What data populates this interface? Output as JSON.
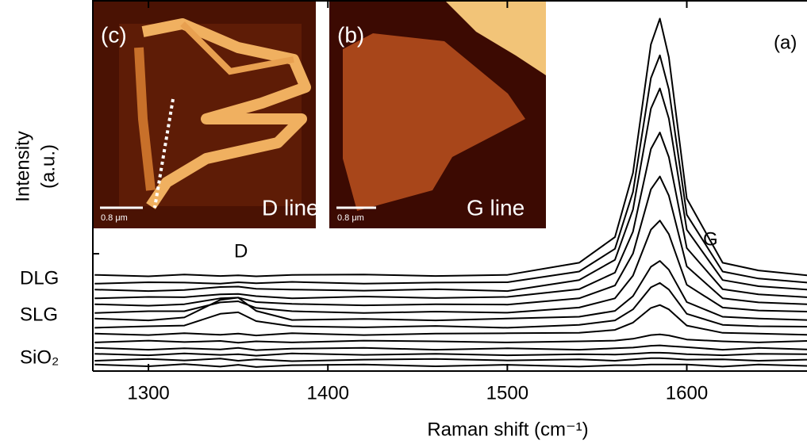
{
  "chart_data": {
    "type": "waterfall",
    "xlabel": "Raman shift (cm⁻¹)",
    "ylabel_lines": [
      "Intensity",
      "(a.u.)"
    ],
    "panel_label": "(a)",
    "annotations": {
      "DLG": "DLG",
      "SLG": "SLG",
      "SiO2": "SiO₂",
      "D": "D",
      "G": "G"
    },
    "insets": [
      {
        "panel": "(c)",
        "label": "D line",
        "scale_bar": "0.8 μm"
      },
      {
        "panel": "(b)",
        "label": "G line",
        "scale_bar": "0.8 μm"
      }
    ],
    "xlim": [
      1269,
      1667
    ],
    "xticks": [
      1300,
      1400,
      1500,
      1600
    ],
    "ylim": [
      0,
      100
    ],
    "color": "#000000",
    "x": [
      1270,
      1300,
      1320,
      1340,
      1350,
      1360,
      1380,
      1420,
      1460,
      1500,
      1540,
      1560,
      1570,
      1580,
      1585,
      1590,
      1600,
      1620,
      1640,
      1667
    ],
    "series": [
      {
        "values": [
          1.8,
          1.3,
          1.9,
          1.2,
          1.7,
          1.1,
          1.6,
          1.8,
          1.3,
          1.7,
          1.2,
          1.6,
          1.6,
          1.8,
          1.8,
          1.8,
          1.8,
          1.2,
          1.8,
          1.4
        ]
      },
      {
        "values": [
          2.8,
          3.3,
          2.9,
          3.4,
          2.8,
          3.2,
          2.7,
          3.1,
          3.3,
          2.9,
          3.2,
          2.8,
          3.2,
          3.5,
          3.5,
          3.4,
          3.1,
          3.2,
          2.8,
          3.1
        ]
      },
      {
        "values": [
          4.7,
          4.3,
          4.8,
          4.4,
          4.6,
          4.2,
          4.8,
          4.4,
          4.7,
          4.3,
          4.6,
          4.5,
          4.7,
          5.0,
          5.0,
          4.9,
          4.6,
          4.3,
          4.7,
          4.6
        ]
      },
      {
        "values": [
          6.3,
          5.8,
          6.2,
          5.9,
          6.3,
          5.7,
          6.1,
          6.3,
          5.8,
          6.2,
          5.8,
          6.2,
          6.4,
          6.9,
          7.0,
          6.8,
          6.5,
          5.8,
          6.3,
          5.9
        ]
      },
      {
        "values": [
          7.8,
          8.3,
          7.9,
          8.2,
          7.7,
          8.1,
          7.8,
          8.3,
          8.1,
          7.8,
          8.1,
          8.3,
          8.8,
          9.8,
          10.0,
          9.7,
          8.6,
          8.1,
          7.8,
          8.2
        ]
      },
      {
        "values": [
          10.2,
          9.8,
          10.3,
          9.9,
          10.2,
          9.7,
          10.3,
          9.8,
          10.2,
          10.3,
          10.4,
          11.2,
          13.2,
          17.2,
          18.0,
          16.8,
          12.4,
          10.4,
          10.2,
          9.9
        ]
      },
      {
        "values": [
          11.8,
          12.2,
          12.4,
          15.6,
          16.0,
          13.6,
          12.2,
          11.9,
          12.3,
          11.8,
          12.6,
          13.8,
          16.8,
          22.8,
          24.0,
          22.2,
          15.6,
          12.6,
          12.2,
          12.1
        ]
      },
      {
        "values": [
          14.3,
          13.8,
          14.6,
          19.4,
          20.0,
          16.4,
          13.9,
          14.2,
          13.8,
          14.3,
          14.8,
          16.4,
          20.4,
          28.4,
          30.0,
          27.6,
          18.8,
          14.8,
          14.3,
          13.9
        ]
      },
      {
        "values": [
          15.8,
          16.3,
          16.3,
          18.7,
          19.0,
          17.2,
          16.3,
          15.8,
          16.2,
          15.9,
          17.3,
          19.8,
          26.0,
          38.5,
          41.0,
          37.3,
          23.5,
          17.3,
          16.5,
          16.2
        ]
      },
      {
        "values": [
          18.2,
          17.8,
          18.2,
          19.8,
          20.0,
          18.8,
          18.3,
          17.9,
          18.2,
          18.1,
          19.8,
          23.3,
          32.0,
          49.5,
          53.0,
          47.8,
          28.5,
          19.8,
          18.7,
          18.2
        ]
      },
      {
        "values": [
          19.8,
          20.2,
          20.1,
          20.9,
          21.0,
          20.4,
          19.8,
          20.3,
          19.9,
          20.2,
          22.3,
          26.8,
          38.0,
          60.5,
          65.0,
          58.3,
          33.5,
          22.3,
          20.9,
          20.1
        ]
      },
      {
        "values": [
          22.2,
          21.8,
          22.1,
          22.9,
          23.0,
          22.4,
          22.2,
          21.9,
          22.3,
          21.8,
          24.8,
          30.3,
          44.0,
          71.5,
          77.0,
          68.8,
          38.5,
          24.8,
          23.1,
          22.2
        ]
      },
      {
        "values": [
          23.8,
          24.2,
          24.1,
          23.8,
          24.2,
          23.9,
          24.3,
          23.8,
          24.1,
          24.2,
          27.1,
          33.3,
          48.8,
          79.8,
          86.0,
          76.7,
          42.6,
          27.1,
          25.2,
          24.1
        ]
      },
      {
        "values": [
          26.2,
          25.8,
          26.3,
          25.9,
          26.1,
          25.8,
          26.2,
          26.3,
          25.9,
          26.2,
          29.5,
          36.5,
          54.0,
          89.0,
          96.0,
          85.5,
          47.0,
          29.5,
          27.4,
          26.1
        ]
      }
    ]
  }
}
